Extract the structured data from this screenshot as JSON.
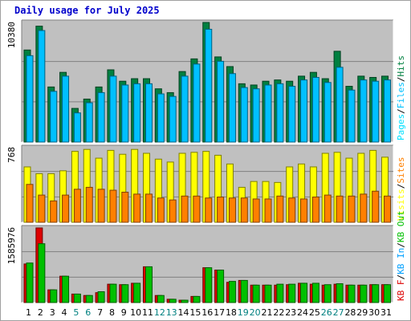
{
  "title": "Daily usage for July 2025",
  "colors": {
    "background": "#c0c0c0",
    "hits": "#008040",
    "files": "#00c0ff",
    "pages": "#00e0ff",
    "visits": "#ffff00",
    "sites": "#ff8000",
    "kb_in": "#00c000",
    "kb_out": "#dd0000",
    "weekend_label": "#008080",
    "weekday_label": "#000000"
  },
  "chart_data": [
    {
      "type": "bar",
      "panel": "hits-files-pages",
      "ymax_label": "10380",
      "ylim": [
        0,
        10380
      ],
      "categories": [
        "1",
        "2",
        "3",
        "4",
        "5",
        "6",
        "7",
        "8",
        "9",
        "10",
        "11",
        "12",
        "13",
        "14",
        "15",
        "16",
        "17",
        "18",
        "19",
        "20",
        "21",
        "22",
        "23",
        "24",
        "25",
        "26",
        "27",
        "28",
        "29",
        "30",
        "31"
      ],
      "legend": [
        {
          "text": "Pages",
          "color": "#00e0ff"
        },
        {
          "text": "/",
          "color": "#000000"
        },
        {
          "text": "Files",
          "color": "#00c0ff"
        },
        {
          "text": "/",
          "color": "#000000"
        },
        {
          "text": "Hits",
          "color": "#008040"
        }
      ],
      "series": [
        {
          "name": "Hits",
          "values": [
            7990,
            10060,
            4780,
            6050,
            2920,
            3730,
            4780,
            6270,
            5280,
            5500,
            5500,
            4620,
            4290,
            6120,
            7220,
            10380,
            7390,
            6550,
            5060,
            4950,
            5280,
            5390,
            5280,
            5720,
            6050,
            5500,
            7880,
            4840,
            5720,
            5610,
            5720
          ]
        },
        {
          "name": "Files",
          "values": [
            7500,
            9680,
            4400,
            5720,
            2530,
            3410,
            4290,
            5720,
            4950,
            5060,
            5060,
            4180,
            3960,
            5720,
            6770,
            9790,
            7010,
            5940,
            4730,
            4620,
            4950,
            5060,
            4840,
            5390,
            5610,
            5170,
            6490,
            4510,
            5390,
            5280,
            5390
          ]
        }
      ]
    },
    {
      "type": "bar",
      "panel": "visits-sites",
      "ymax_label": "768",
      "ylim": [
        0,
        768
      ],
      "categories": [
        "1",
        "2",
        "3",
        "4",
        "5",
        "6",
        "7",
        "8",
        "9",
        "10",
        "11",
        "12",
        "13",
        "14",
        "15",
        "16",
        "17",
        "18",
        "19",
        "20",
        "21",
        "22",
        "23",
        "24",
        "25",
        "26",
        "27",
        "28",
        "29",
        "30",
        "31"
      ],
      "legend": [
        {
          "text": "Visits",
          "color": "#ffff00"
        },
        {
          "text": "/",
          "color": "#000000"
        },
        {
          "text": "Sites",
          "color": "#ff8000"
        }
      ],
      "series": [
        {
          "name": "Visits",
          "values": [
            570,
            500,
            500,
            530,
            730,
            750,
            660,
            740,
            700,
            750,
            710,
            650,
            620,
            710,
            720,
            730,
            690,
            600,
            360,
            420,
            420,
            410,
            570,
            600,
            570,
            710,
            720,
            660,
            710,
            740,
            670
          ]
        },
        {
          "name": "Sites",
          "values": [
            390,
            280,
            220,
            280,
            340,
            360,
            340,
            330,
            310,
            290,
            290,
            250,
            230,
            270,
            270,
            250,
            260,
            250,
            250,
            240,
            240,
            270,
            250,
            240,
            260,
            280,
            270,
            270,
            290,
            320,
            270
          ]
        }
      ]
    },
    {
      "type": "bar",
      "panel": "kb-in-out",
      "ymax_label": "1585976",
      "ylim": [
        0,
        1585976
      ],
      "categories": [
        "1",
        "2",
        "3",
        "4",
        "5",
        "6",
        "7",
        "8",
        "9",
        "10",
        "11",
        "12",
        "13",
        "14",
        "15",
        "16",
        "17",
        "18",
        "19",
        "20",
        "21",
        "22",
        "23",
        "24",
        "25",
        "26",
        "27",
        "28",
        "29",
        "30",
        "31"
      ],
      "legend": [
        {
          "text": "KB F",
          "color": "#dd0000"
        },
        {
          "text": "/",
          "color": "#000000"
        },
        {
          "text": "KB In",
          "color": "#00a0ff"
        },
        {
          "text": "/",
          "color": "#000000"
        },
        {
          "text": "KB Out",
          "color": "#00c000"
        }
      ],
      "series": [
        {
          "name": "KB F",
          "values": [
            820000,
            1585976,
            270000,
            560000,
            180000,
            150000,
            210000,
            390000,
            380000,
            410000,
            760000,
            150000,
            70000,
            50000,
            130000,
            740000,
            690000,
            430000,
            470000,
            370000,
            370000,
            370000,
            380000,
            410000,
            390000,
            370000,
            390000,
            370000,
            370000,
            380000,
            380000
          ]
        },
        {
          "name": "KB Out",
          "values": [
            840000,
            1250000,
            270000,
            560000,
            180000,
            150000,
            230000,
            390000,
            380000,
            410000,
            760000,
            150000,
            70000,
            50000,
            130000,
            740000,
            690000,
            450000,
            470000,
            370000,
            370000,
            390000,
            390000,
            410000,
            410000,
            380000,
            400000,
            370000,
            370000,
            380000,
            380000
          ]
        }
      ]
    }
  ],
  "weekend_days": [
    "5",
    "6",
    "12",
    "13",
    "19",
    "20",
    "26",
    "27"
  ]
}
